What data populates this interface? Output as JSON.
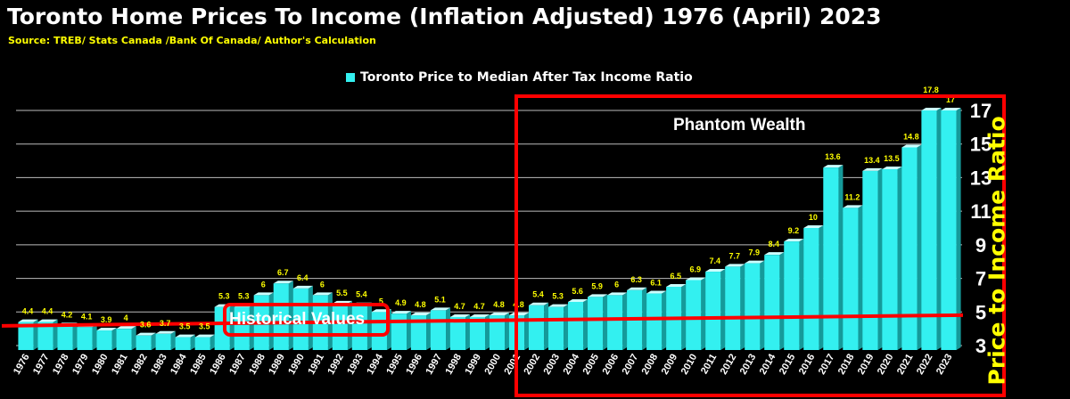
{
  "title": "Toronto Home Prices To Income (Inflation Adjusted) 1976 (April) 2023",
  "subtitle": "Source: TREB/ Stats Canada /Bank Of Canada/ Author's Calculation",
  "annotations": {
    "phantom": "Phantom Wealth",
    "historical": "Historical Values"
  },
  "colors": {
    "bar": "#33f0f0",
    "bar_top": "#ccffff",
    "bar_side": "#159a9a",
    "data_label": "#ffff00",
    "highlight": "#ff0000",
    "grid": "#bbbbbb",
    "background": "#000000"
  },
  "chart_data": {
    "type": "bar",
    "title": "Toronto Home Prices To Income (Inflation Adjusted) 1976 (April) 2023",
    "ylabel": "Price to Income Ratio",
    "xlabel": "",
    "legend": "top-center",
    "grid": true,
    "ylim": [
      3,
      17
    ],
    "yticks": [
      3,
      5,
      7,
      9,
      11,
      13,
      15,
      17
    ],
    "reference_line": 4.6,
    "categories": [
      "1976",
      "1977",
      "1978",
      "1979",
      "1980",
      "1981",
      "1982",
      "1983",
      "1984",
      "1985",
      "1986",
      "1987",
      "1988",
      "1989",
      "1990",
      "1991",
      "1992",
      "1993",
      "1994",
      "1995",
      "1996",
      "1997",
      "1998",
      "1999",
      "2000",
      "2001",
      "2002",
      "2003",
      "2004",
      "2005",
      "2006",
      "2007",
      "2008",
      "2009",
      "2010",
      "2011",
      "2012",
      "2013",
      "2014",
      "2015",
      "2016",
      "2017",
      "2018",
      "2019",
      "2020",
      "2021",
      "2022",
      "2023"
    ],
    "series": [
      {
        "name": "Toronto Price to Median After Tax Income Ratio",
        "values": [
          4.4,
          4.4,
          4.2,
          4.1,
          3.9,
          4,
          3.6,
          3.7,
          3.5,
          3.5,
          5.3,
          5.3,
          6,
          6.7,
          6.4,
          6,
          5.5,
          5.4,
          5,
          4.9,
          4.8,
          5.1,
          4.7,
          4.7,
          4.8,
          4.8,
          5.4,
          5.3,
          5.6,
          5.9,
          6,
          6.3,
          6.1,
          6.5,
          6.9,
          7.4,
          7.7,
          7.9,
          8.4,
          9.2,
          10,
          13.6,
          11.2,
          13.4,
          13.5,
          14.8,
          17.8,
          17
        ],
        "labels": [
          "4.4",
          "4.4",
          "4.2",
          "4.1",
          "3.9",
          "4",
          "3.6",
          "3.7",
          "3.5",
          "3.5",
          "5.3",
          "5.3",
          "6",
          "6.7",
          "6.4",
          "6",
          "5.5",
          "5.4",
          "5",
          "4.9",
          "4.8",
          "5.1",
          "4.7",
          "4.7",
          "4.8",
          "4.8",
          "5.4",
          "5.3",
          "5.6",
          "5.9",
          "6",
          "6.3",
          "6.1",
          "6.5",
          "6.9",
          "7.4",
          "7.7",
          "7.9",
          "8.4",
          "9.2",
          "10",
          "13.6",
          "11.2",
          "13.4",
          "13.5",
          "14.8",
          "17.8",
          "17"
        ]
      }
    ]
  }
}
